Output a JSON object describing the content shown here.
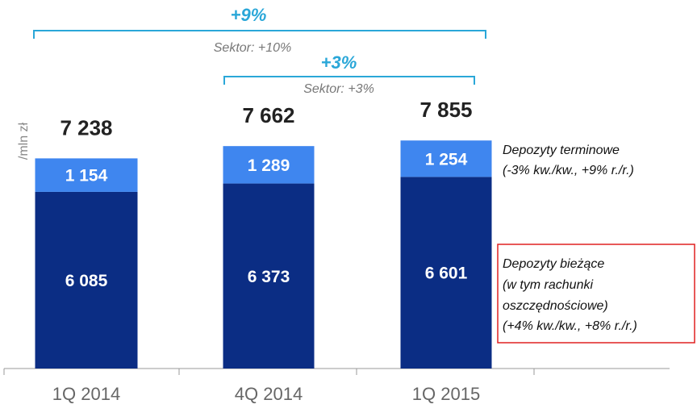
{
  "chart_data": {
    "type": "stacked_bar",
    "y_axis_label": "/mln zł",
    "categories": [
      "1Q 2014",
      "4Q 2014",
      "1Q 2015"
    ],
    "series": [
      {
        "name": "Depozyty bieżące",
        "description": [
          "(w tym rachunki",
          "oszczędnościowe)",
          "(+4% kw./kw., +8% r./r.)"
        ],
        "color": "#0b2d84",
        "values": [
          6085,
          6373,
          6601
        ],
        "value_labels": [
          "6 085",
          "6 373",
          "6 601"
        ]
      },
      {
        "name": "Depozyty terminowe",
        "description": [
          "(-3% kw./kw., +9% r./r.)"
        ],
        "color": "#3f86ef",
        "values": [
          1154,
          1289,
          1254
        ],
        "value_labels": [
          "1 154",
          "1 289",
          "1 254"
        ]
      }
    ],
    "totals": {
      "values": [
        7238,
        7662,
        7855
      ],
      "value_labels": [
        "7 238",
        "7 662",
        "7 855"
      ]
    },
    "annotations": [
      {
        "text": "+9%",
        "sector": "Sektor: +10%"
      },
      {
        "text": "+3%",
        "sector": "Sektor: +3%"
      }
    ]
  }
}
